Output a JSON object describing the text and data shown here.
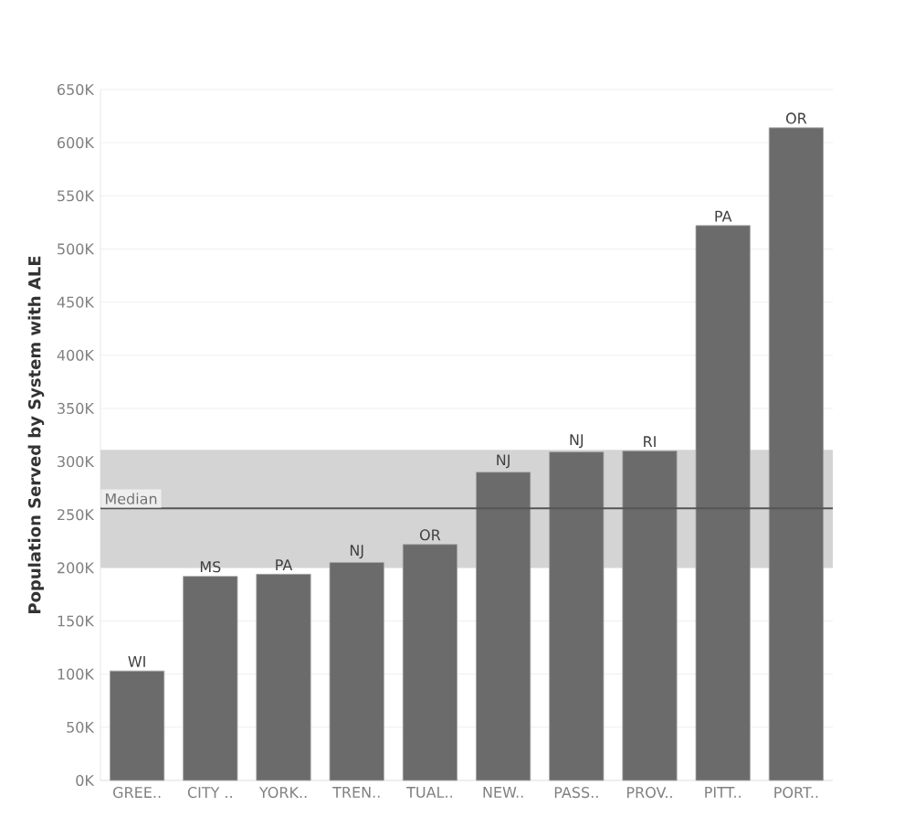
{
  "chart_data": {
    "type": "bar",
    "ylabel": "Population Served by System with ALE",
    "categories": [
      "GREE..",
      "CITY ..",
      "YORK..",
      "TREN..",
      "TUAL..",
      "NEW..",
      "PASS..",
      "PROV..",
      "PITT..",
      "PORT.."
    ],
    "values": [
      103000,
      192000,
      194000,
      205000,
      222000,
      290000,
      309000,
      310000,
      522000,
      614000
    ],
    "value_labels": [
      "WI",
      "MS",
      "PA",
      "NJ",
      "OR",
      "NJ",
      "NJ",
      "RI",
      "PA",
      "OR"
    ],
    "color": "#6b6b6b",
    "ylim": [
      0,
      650000
    ],
    "yticks": [
      {
        "value": 0,
        "label": "0K"
      },
      {
        "value": 50000,
        "label": "50K"
      },
      {
        "value": 100000,
        "label": "100K"
      },
      {
        "value": 150000,
        "label": "150K"
      },
      {
        "value": 200000,
        "label": "200K"
      },
      {
        "value": 250000,
        "label": "250K"
      },
      {
        "value": 300000,
        "label": "300K"
      },
      {
        "value": 350000,
        "label": "350K"
      },
      {
        "value": 400000,
        "label": "400K"
      },
      {
        "value": 450000,
        "label": "450K"
      },
      {
        "value": 500000,
        "label": "500K"
      },
      {
        "value": 550000,
        "label": "550K"
      },
      {
        "value": 600000,
        "label": "600K"
      },
      {
        "value": 650000,
        "label": "650K"
      }
    ],
    "grid": "y",
    "ref_lines": [
      {
        "axis": "y",
        "value": 256000,
        "label": "Median",
        "color": "#555555"
      }
    ],
    "bands": [
      {
        "axis": "y",
        "from": 200000,
        "to": 311000,
        "color": "#d4d4d4"
      }
    ]
  }
}
